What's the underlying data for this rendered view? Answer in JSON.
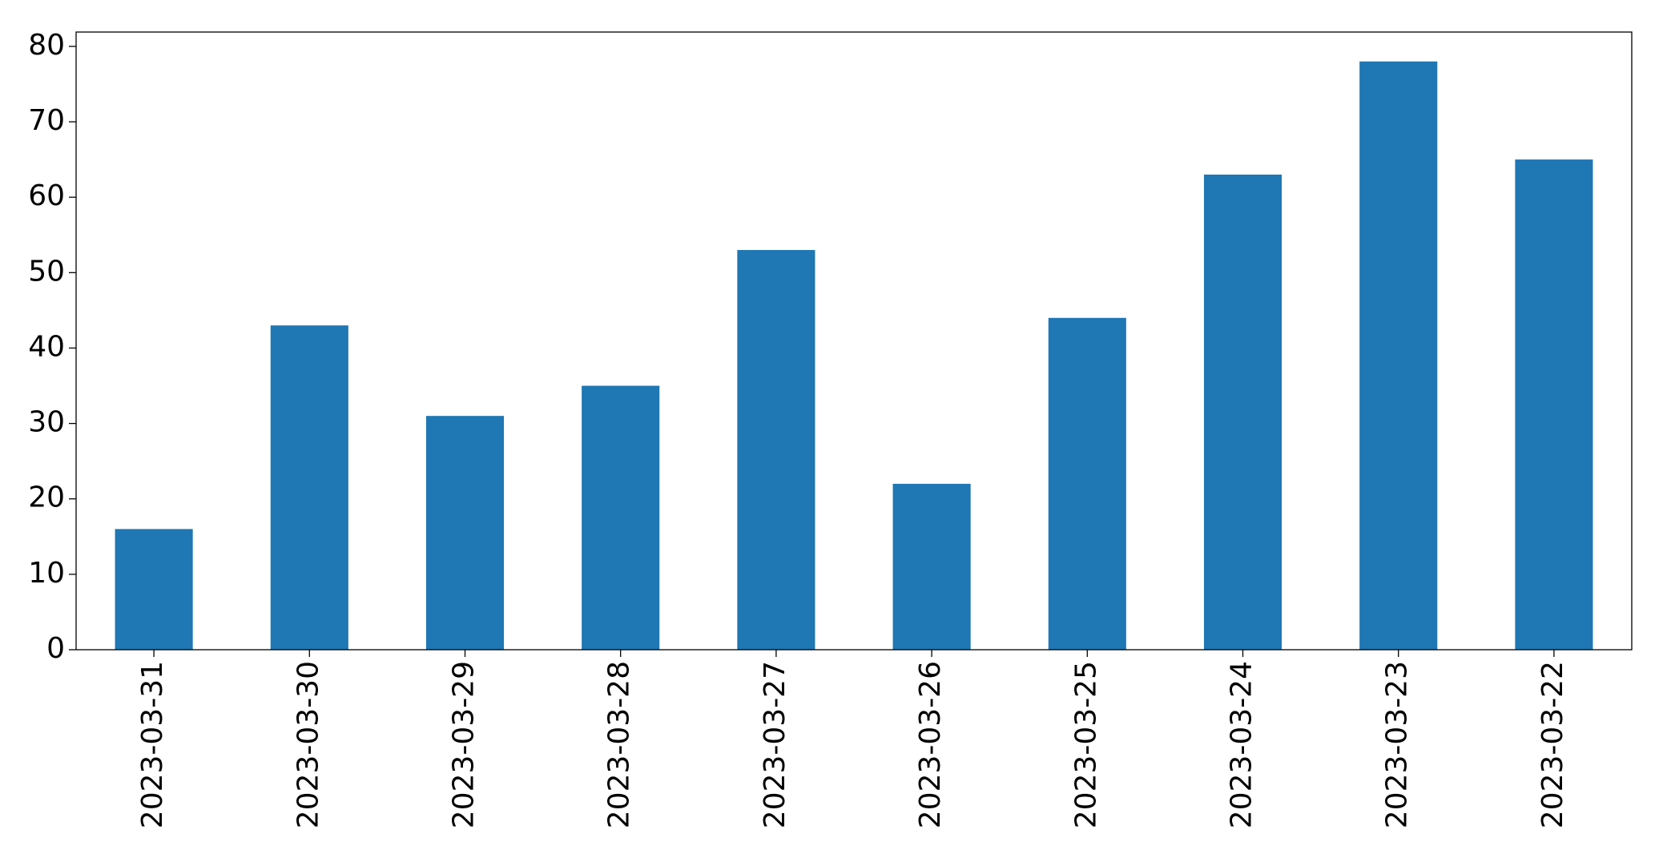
{
  "chart_data": {
    "type": "bar",
    "categories": [
      "2023-03-31",
      "2023-03-30",
      "2023-03-29",
      "2023-03-28",
      "2023-03-27",
      "2023-03-26",
      "2023-03-25",
      "2023-03-24",
      "2023-03-23",
      "2023-03-22"
    ],
    "values": [
      16,
      43,
      31,
      35,
      53,
      22,
      44,
      63,
      78,
      65
    ],
    "color": "#1f77b4",
    "ylim": [
      0,
      81.9
    ],
    "yticks": [
      0,
      10,
      20,
      30,
      40,
      50,
      60,
      70,
      80
    ],
    "grid": false
  }
}
